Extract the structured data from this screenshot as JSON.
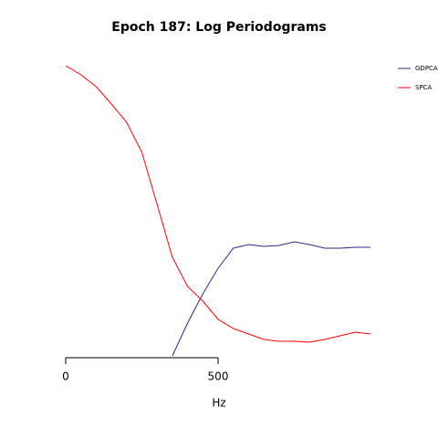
{
  "chart_data": {
    "type": "line",
    "title": "Epoch 187: Log Periodograms",
    "x_label": "Hz",
    "x": [
      0,
      50,
      100,
      150,
      200,
      250,
      300,
      350,
      400,
      450,
      500,
      550,
      600,
      650,
      700,
      750,
      800,
      850,
      900,
      950,
      1000
    ],
    "series": [
      {
        "name": "GDPCA",
        "color": "#2b2b8c",
        "values": [
          null,
          null,
          null,
          null,
          null,
          null,
          null,
          2,
          38,
          70,
          98,
          120,
          124,
          122,
          123,
          127,
          124,
          120,
          120,
          121,
          121
        ]
      },
      {
        "name": "SPCA",
        "color": "#ff0000",
        "values": [
          320,
          310,
          297,
          278,
          258,
          225,
          168,
          110,
          78,
          62,
          42,
          32,
          26,
          20,
          18,
          18,
          17,
          20,
          24,
          28,
          26
        ]
      }
    ],
    "xlim": [
      0,
      1000
    ],
    "xticks": [
      0,
      500
    ],
    "ylim": [
      0,
      330
    ],
    "legend": "top-right"
  }
}
